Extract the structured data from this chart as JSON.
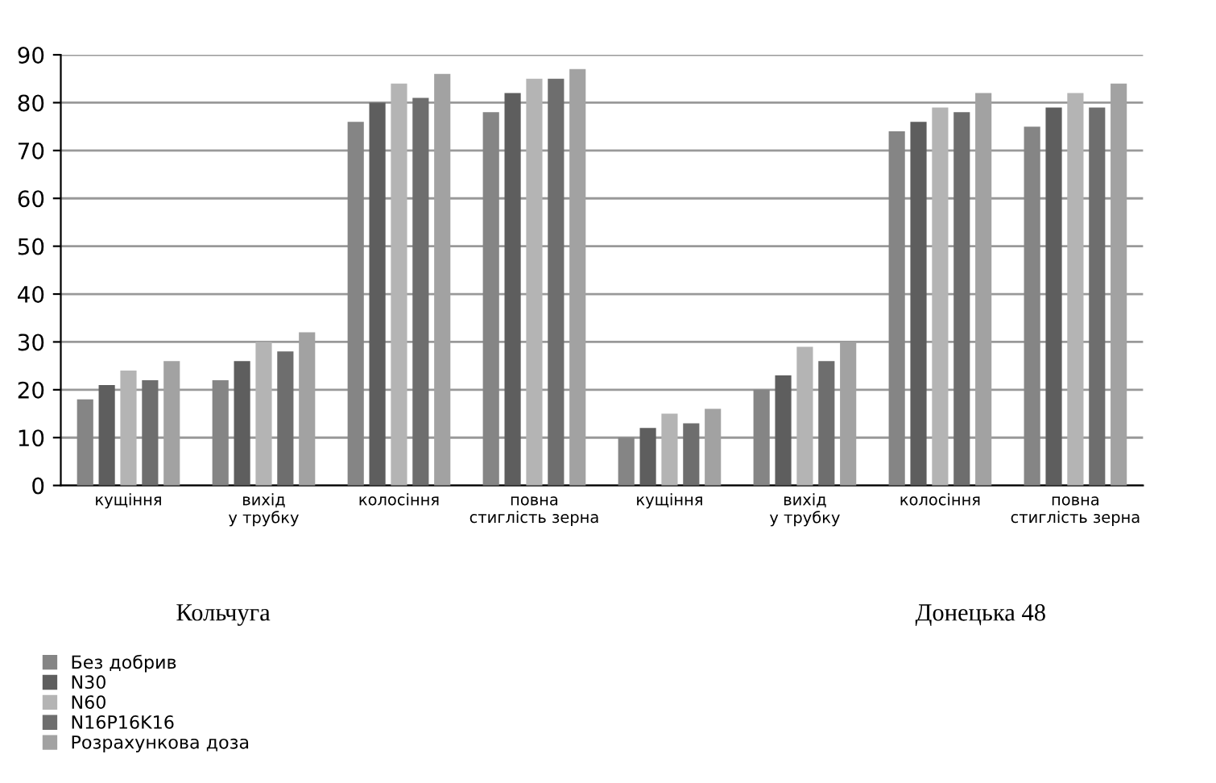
{
  "chart_data": {
    "type": "bar",
    "categories": [
      "кущіння",
      "вихід у трубку",
      "колосіння",
      "повна стиглість зерна",
      "кущіння",
      "вихід у трубку",
      "колосіння",
      "повна стиглість зерна"
    ],
    "series": [
      {
        "name": "Без добрив",
        "color": "#858585",
        "values": [
          18,
          22,
          76,
          78,
          10,
          20,
          74,
          75
        ]
      },
      {
        "name": "N30",
        "color": "#5e5e5e",
        "values": [
          21,
          26,
          80,
          82,
          12,
          23,
          76,
          79
        ]
      },
      {
        "name": "N60",
        "color": "#b4b4b4",
        "values": [
          24,
          30,
          84,
          85,
          15,
          29,
          79,
          82
        ]
      },
      {
        "name": "N16P16K16",
        "color": "#6e6e6e",
        "values": [
          22,
          28,
          81,
          85,
          13,
          26,
          78,
          79
        ]
      },
      {
        "name": "Розрахункова доза",
        "color": "#a2a2a2",
        "values": [
          26,
          32,
          86,
          87,
          16,
          30,
          82,
          84
        ]
      }
    ],
    "ylim": [
      0,
      90
    ],
    "yticks": [
      0,
      10,
      20,
      30,
      40,
      50,
      60,
      70,
      80,
      90
    ],
    "grid": "y",
    "legend": "bottom left",
    "annotations": [
      "Кольчуга",
      "Донецька 48"
    ]
  }
}
